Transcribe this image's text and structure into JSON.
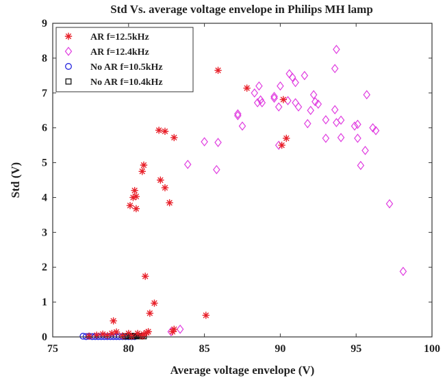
{
  "chart_data": {
    "type": "scatter",
    "title": "Std Vs. average voltage envelope in Philips MH lamp",
    "xlabel": "Average voltage envelope (V)",
    "ylabel": "Std (V)",
    "xlim": [
      75,
      100
    ],
    "ylim": [
      0,
      9
    ],
    "xticks": [
      75,
      80,
      85,
      90,
      95,
      100
    ],
    "yticks": [
      0,
      1,
      2,
      3,
      4,
      5,
      6,
      7,
      8,
      9
    ],
    "grid": false,
    "legend_position": "top-left",
    "series": [
      {
        "name": "AR f=12.5kHz",
        "marker": "asterisk",
        "color": "#e8202a",
        "points": [
          [
            77.4,
            0.02
          ],
          [
            77.9,
            0.05
          ],
          [
            78.3,
            0.08
          ],
          [
            78.6,
            0.04
          ],
          [
            78.9,
            0.1
          ],
          [
            79.0,
            0.46
          ],
          [
            79.2,
            0.14
          ],
          [
            79.6,
            0.03
          ],
          [
            80.0,
            0.1
          ],
          [
            80.2,
            0.02
          ],
          [
            80.6,
            0.1
          ],
          [
            80.9,
            0.02
          ],
          [
            81.0,
            0.08
          ],
          [
            81.2,
            0.12
          ],
          [
            81.3,
            0.15
          ],
          [
            81.1,
            1.74
          ],
          [
            81.4,
            0.68
          ],
          [
            81.7,
            0.97
          ],
          [
            80.1,
            3.77
          ],
          [
            80.4,
            4.2
          ],
          [
            80.3,
            4.0
          ],
          [
            80.5,
            4.03
          ],
          [
            80.5,
            3.68
          ],
          [
            80.9,
            4.75
          ],
          [
            81.0,
            4.93
          ],
          [
            82.1,
            4.5
          ],
          [
            82.4,
            4.28
          ],
          [
            82.7,
            3.85
          ],
          [
            82.0,
            5.93
          ],
          [
            82.4,
            5.9
          ],
          [
            83.0,
            5.72
          ],
          [
            82.9,
            0.15
          ],
          [
            83.0,
            0.22
          ],
          [
            85.1,
            0.62
          ],
          [
            85.9,
            7.65
          ],
          [
            87.8,
            7.14
          ],
          [
            90.1,
            5.5
          ],
          [
            90.4,
            5.7
          ],
          [
            90.2,
            6.81
          ]
        ]
      },
      {
        "name": "AR f=12.4kHz",
        "marker": "diamond",
        "color": "#e03ce0",
        "points": [
          [
            82.8,
            0.15
          ],
          [
            83.4,
            0.22
          ],
          [
            83.9,
            4.95
          ],
          [
            85.0,
            5.6
          ],
          [
            85.8,
            4.8
          ],
          [
            85.9,
            5.58
          ],
          [
            87.2,
            6.35
          ],
          [
            87.2,
            6.4
          ],
          [
            87.5,
            6.05
          ],
          [
            88.3,
            7.0
          ],
          [
            88.5,
            6.72
          ],
          [
            88.6,
            7.2
          ],
          [
            88.7,
            6.8
          ],
          [
            88.8,
            6.72
          ],
          [
            89.6,
            6.85
          ],
          [
            89.6,
            6.9
          ],
          [
            89.9,
            6.6
          ],
          [
            89.9,
            5.5
          ],
          [
            90.0,
            7.2
          ],
          [
            90.5,
            6.78
          ],
          [
            90.6,
            7.55
          ],
          [
            90.8,
            7.45
          ],
          [
            91.0,
            7.3
          ],
          [
            91.0,
            6.72
          ],
          [
            91.2,
            6.6
          ],
          [
            91.6,
            7.5
          ],
          [
            91.8,
            6.12
          ],
          [
            92.0,
            6.5
          ],
          [
            92.2,
            6.95
          ],
          [
            92.3,
            6.75
          ],
          [
            92.5,
            6.68
          ],
          [
            93.0,
            5.7
          ],
          [
            93.0,
            6.23
          ],
          [
            93.6,
            7.7
          ],
          [
            93.7,
            8.25
          ],
          [
            93.6,
            6.52
          ],
          [
            93.7,
            6.15
          ],
          [
            94.0,
            6.22
          ],
          [
            94.0,
            5.72
          ],
          [
            94.9,
            6.05
          ],
          [
            95.1,
            6.1
          ],
          [
            95.1,
            5.7
          ],
          [
            95.3,
            4.92
          ],
          [
            95.6,
            5.35
          ],
          [
            95.7,
            6.95
          ],
          [
            96.1,
            6.0
          ],
          [
            96.3,
            5.92
          ],
          [
            97.2,
            3.82
          ],
          [
            98.1,
            1.88
          ]
        ]
      },
      {
        "name": "No AR f=10.5kHz",
        "marker": "circle",
        "color": "#2222dd",
        "points": [
          [
            77.0,
            0.02
          ],
          [
            77.2,
            0.01
          ],
          [
            77.4,
            0.02
          ],
          [
            77.6,
            0.01
          ],
          [
            77.8,
            0.01
          ],
          [
            78.0,
            0.01
          ],
          [
            78.2,
            0.01
          ],
          [
            78.4,
            0.01
          ],
          [
            78.6,
            0.01
          ],
          [
            78.8,
            0.01
          ],
          [
            79.0,
            0.01
          ],
          [
            79.2,
            0.01
          ],
          [
            79.4,
            0.01
          ],
          [
            79.6,
            0.01
          ],
          [
            79.8,
            0.01
          ],
          [
            80.0,
            0.01
          ],
          [
            80.2,
            0.01
          ],
          [
            80.4,
            0.01
          ]
        ]
      },
      {
        "name": "No AR f=10.4kHz",
        "marker": "square",
        "color": "#111111",
        "points": [
          [
            79.8,
            0.02
          ],
          [
            79.9,
            0.02
          ],
          [
            80.0,
            0.03
          ],
          [
            80.1,
            0.02
          ],
          [
            80.2,
            0.02
          ],
          [
            80.3,
            0.03
          ],
          [
            80.4,
            0.02
          ],
          [
            80.5,
            0.02
          ],
          [
            80.6,
            0.03
          ],
          [
            80.7,
            0.02
          ],
          [
            80.8,
            0.02
          ],
          [
            80.9,
            0.03
          ],
          [
            81.0,
            0.02
          ]
        ]
      }
    ]
  }
}
